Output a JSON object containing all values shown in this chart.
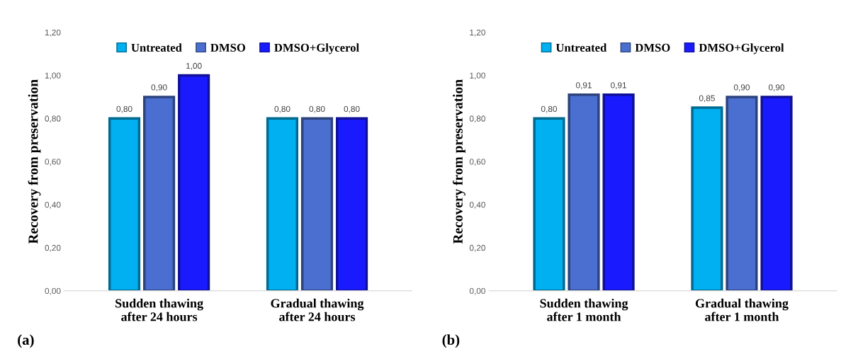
{
  "chart_data": [
    {
      "type": "bar",
      "ylabel": "Recovery from preservation",
      "categories": [
        "Sudden thawing\nafter 24 hours",
        "Gradual thawing\nafter 24 hours"
      ],
      "series": [
        {
          "name": "Untreated",
          "color": "#00b0f0",
          "values": [
            0.8,
            0.8
          ],
          "value_labels": [
            "0,80",
            "0,80"
          ]
        },
        {
          "name": "DMSO",
          "color": "#4a6fd0",
          "values": [
            0.9,
            0.8
          ],
          "value_labels": [
            "0,90",
            "0,80"
          ]
        },
        {
          "name": "DMSO+Glycerol",
          "color": "#1a1aff",
          "values": [
            1.0,
            0.8
          ],
          "value_labels": [
            "1,00",
            "0,80"
          ]
        }
      ],
      "ylim": [
        0,
        1.2
      ],
      "yticks": [
        {
          "value": 0,
          "label": "0,00"
        },
        {
          "value": 0.2,
          "label": "0,20"
        },
        {
          "value": 0.4,
          "label": "0,40"
        },
        {
          "value": 0.6,
          "label": "0,60"
        },
        {
          "value": 0.8,
          "label": "0,80"
        },
        {
          "value": 1.0,
          "label": "1,00"
        },
        {
          "value": 1.2,
          "label": "1,20"
        }
      ],
      "legend": "top",
      "grid": false,
      "annotations": [
        "(a)"
      ]
    },
    {
      "type": "bar",
      "ylabel": "Recovery from preservation",
      "categories": [
        "Sudden thawing\nafter 1 month",
        "Gradual thawing\nafter 1 month"
      ],
      "series": [
        {
          "name": "Untreated",
          "color": "#00b0f0",
          "values": [
            0.8,
            0.85
          ],
          "value_labels": [
            "0,80",
            "0,85"
          ]
        },
        {
          "name": "DMSO",
          "color": "#4a6fd0",
          "values": [
            0.91,
            0.9
          ],
          "value_labels": [
            "0,91",
            "0,90"
          ]
        },
        {
          "name": "DMSO+Glycerol",
          "color": "#1a1aff",
          "values": [
            0.91,
            0.9
          ],
          "value_labels": [
            "0,91",
            "0,90"
          ]
        }
      ],
      "ylim": [
        0,
        1.2
      ],
      "yticks": [
        {
          "value": 0,
          "label": "0,00"
        },
        {
          "value": 0.2,
          "label": "0,20"
        },
        {
          "value": 0.4,
          "label": "0,40"
        },
        {
          "value": 0.6,
          "label": "0,60"
        },
        {
          "value": 0.8,
          "label": "0,80"
        },
        {
          "value": 1.0,
          "label": "1,00"
        },
        {
          "value": 1.2,
          "label": "1,20"
        }
      ],
      "legend": "top",
      "grid": false,
      "annotations": [
        "(b)"
      ]
    }
  ]
}
